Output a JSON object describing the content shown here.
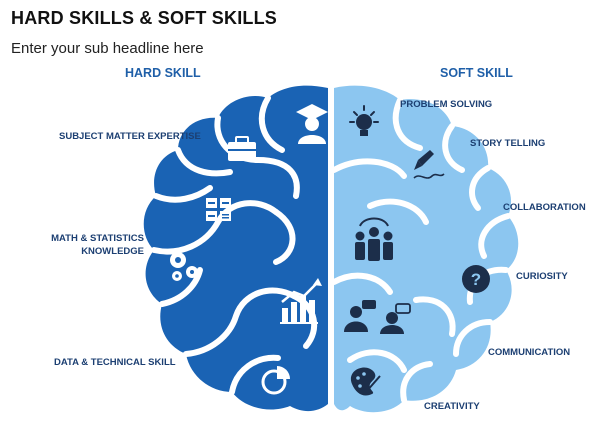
{
  "header": {
    "title": "HARD SKILLS & SOFT SKILLS",
    "subtitle": "Enter your sub headline here"
  },
  "hard": {
    "heading": "HARD SKILL",
    "color": "#1a63b4",
    "items": [
      {
        "label": "SUBJECT MATTER EXPERTISE",
        "icon": "graduate-icon"
      },
      {
        "label_line1": "MATH & STATISTICS",
        "label_line2": "KNOWLEDGE",
        "icon": "calculator-icon"
      },
      {
        "label": "DATA & TECHNICAL SKILL",
        "icon": "chart-icon"
      }
    ],
    "extra_icons": [
      "briefcase-icon",
      "gears-icon",
      "pie-chart-icon"
    ]
  },
  "soft": {
    "heading": "SOFT SKILL",
    "color": "#8cc6f0",
    "items": [
      {
        "label": "PROBLEM SOLVING",
        "icon": "lightbulb-icon"
      },
      {
        "label": "STORY TELLING",
        "icon": "pen-icon"
      },
      {
        "label": "COLLABORATION",
        "icon": "team-icon"
      },
      {
        "label": "CURIOSITY",
        "icon": "question-icon"
      },
      {
        "label": "COMMUNICATION",
        "icon": "conversation-icon"
      },
      {
        "label": "CREATIVITY",
        "icon": "palette-icon"
      }
    ]
  }
}
